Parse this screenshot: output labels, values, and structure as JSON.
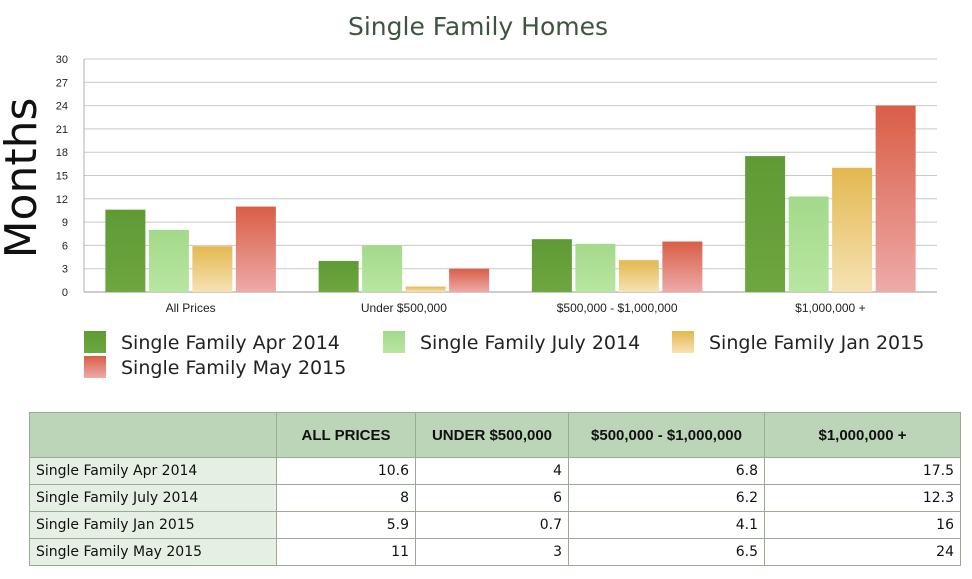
{
  "chart_data": {
    "type": "bar",
    "title": "Single Family Homes",
    "xlabel": "",
    "ylabel": "Months",
    "ylim": [
      0,
      30
    ],
    "yticks": [
      0,
      3,
      6,
      9,
      12,
      15,
      18,
      21,
      24,
      27,
      30
    ],
    "grid": true,
    "legend_position": "bottom",
    "categories": [
      "All Prices",
      "Under $500,000",
      "$500,000 - $1,000,000",
      "$1,000,000 +"
    ],
    "series": [
      {
        "name": "Single Family Apr 2014",
        "values": [
          10.6,
          4,
          6.8,
          17.5
        ],
        "color": "#5f9a34",
        "color_light": "#6ea63f"
      },
      {
        "name": "Single Family July 2014",
        "values": [
          8,
          6,
          6.2,
          12.3
        ],
        "color": "#a3d98a",
        "color_light": "#b8e6a1"
      },
      {
        "name": "Single Family Jan 2015",
        "values": [
          5.9,
          0.7,
          4.1,
          16
        ],
        "color": "#e3b84f",
        "color_light": "#f6e2b4"
      },
      {
        "name": "Single Family May 2015",
        "values": [
          11,
          3,
          6.5,
          24
        ],
        "color": "#d95e46",
        "color_light": "#eeaaa8"
      }
    ]
  },
  "table": {
    "headers": [
      "",
      "ALL PRICES",
      "UNDER $500,000",
      "$500,000 - $1,000,000",
      "$1,000,000 +"
    ],
    "rows": [
      {
        "label": "Single Family Apr 2014",
        "cells": [
          "10.6",
          "4",
          "6.8",
          "17.5"
        ]
      },
      {
        "label": "Single Family July 2014",
        "cells": [
          "8",
          "6",
          "6.2",
          "12.3"
        ]
      },
      {
        "label": "Single Family Jan 2015",
        "cells": [
          "5.9",
          "0.7",
          "4.1",
          "16"
        ]
      },
      {
        "label": "Single Family May 2015",
        "cells": [
          "11",
          "3",
          "6.5",
          "24"
        ]
      }
    ]
  }
}
